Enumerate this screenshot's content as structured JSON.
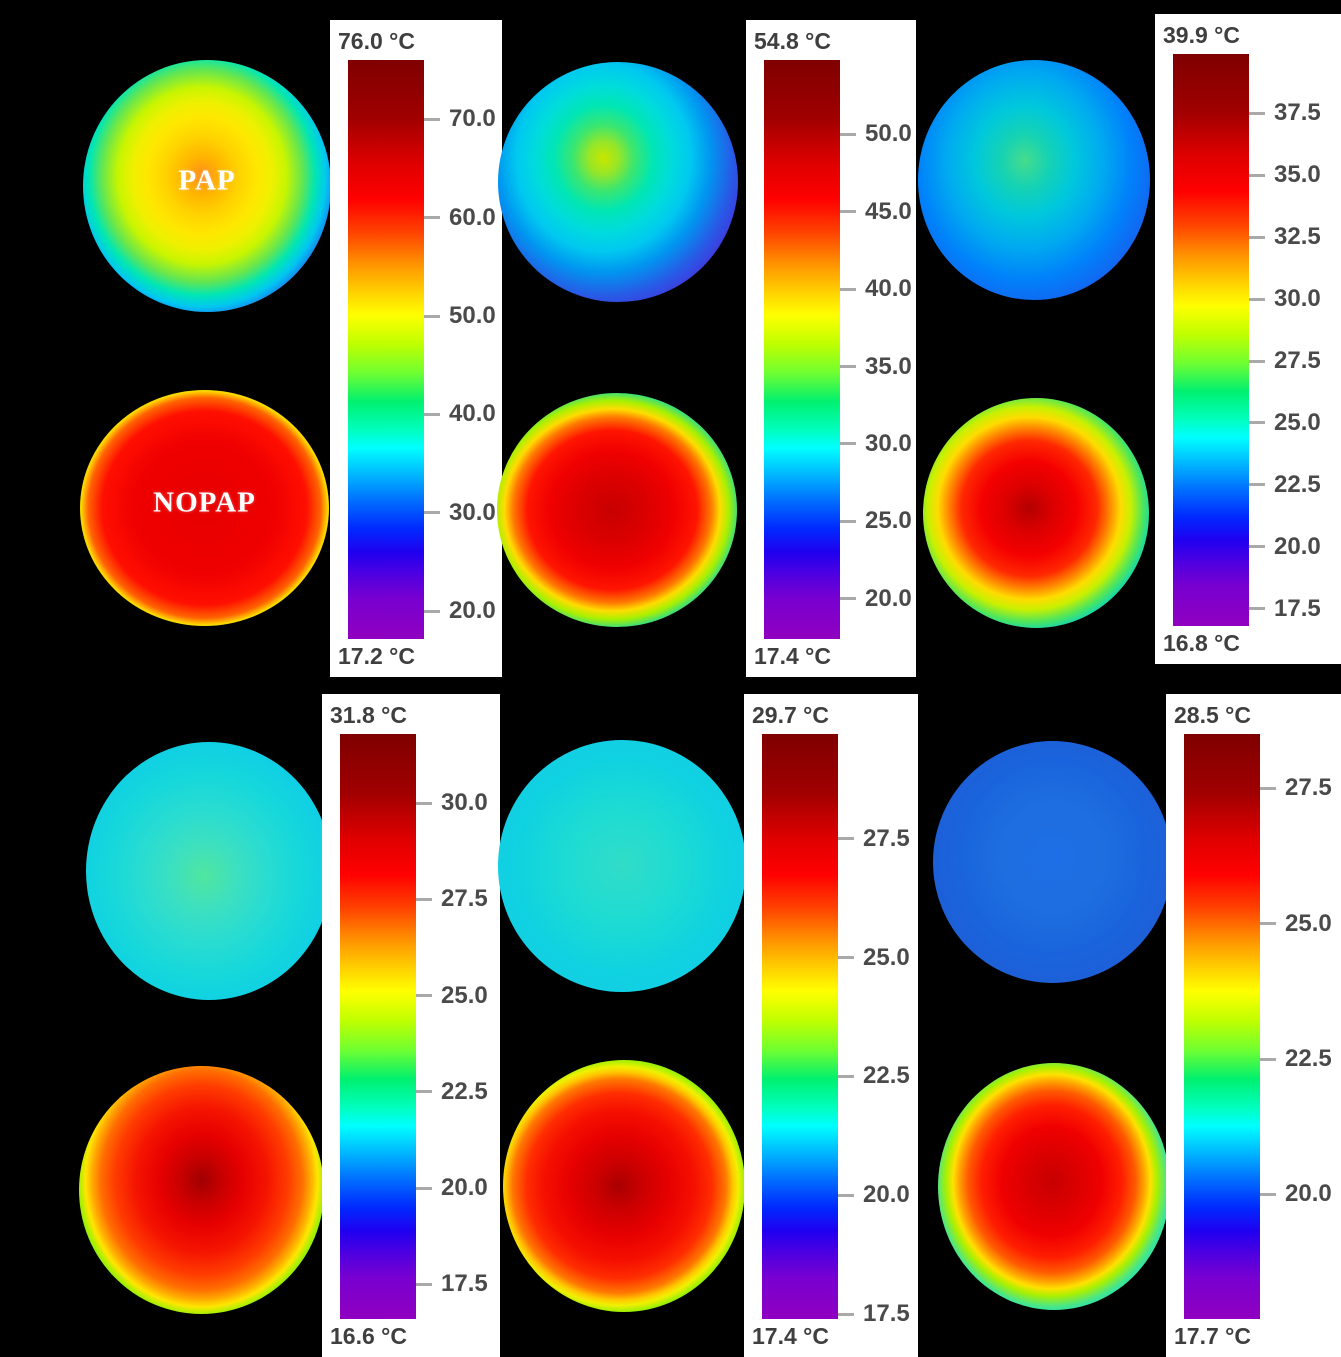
{
  "figure": {
    "background_color": "#000000",
    "pap_label": "PAP",
    "nopap_label": "NOPAP",
    "colorbar_gradient": [
      "#7f0000 0%",
      "#a00000 10%",
      "#e00000 18%",
      "#ff0000 24%",
      "#ff4500 30%",
      "#ff9000 35%",
      "#ffd000 40%",
      "#ffff00 44%",
      "#c0ff00 49%",
      "#70ff30 54%",
      "#00f070 59%",
      "#00ffc0 64%",
      "#00ffff 67%",
      "#00c0ff 71%",
      "#0070ff 76%",
      "#0028ff 81%",
      "#2000f0 85%",
      "#5000e0 89%",
      "#7800d0 93%",
      "#9000c0 100%"
    ]
  },
  "chart_data": [
    {
      "type": "heatmap",
      "position": "row 1, col 1",
      "colorbar": {
        "unit": "°C",
        "max": 76.0,
        "min": 17.2,
        "max_label": "76.0 °C",
        "min_label": "17.2 °C",
        "ticks": [
          {
            "label": "70.0",
            "value": 70.0
          },
          {
            "label": "60.0",
            "value": 60.0
          },
          {
            "label": "50.0",
            "value": 50.0
          },
          {
            "label": "40.0",
            "value": 40.0
          },
          {
            "label": "30.0",
            "value": 30.0
          },
          {
            "label": "20.0",
            "value": 20.0
          }
        ]
      },
      "images": [
        {
          "name": "PAP",
          "label": "PAP",
          "description": "warm disc: orange-yellow core, green-cyan ring, blue-violet rim",
          "gradient": {
            "at": "48% 46%",
            "stops": [
              "#ff8c1e 0%",
              "#ffb400 10%",
              "#ffd200 20%",
              "#ffe600 30%",
              "#f0f000 38%",
              "#c8f500 46%",
              "#64e650 55%",
              "#00e6b4 62%",
              "#00c8f0 68%",
              "#1e78f0 74%",
              "#3c3ce6 80%",
              "#5a14d2 87%",
              "#6414b4 94%",
              "#5a10a0 100%"
            ]
          }
        },
        {
          "name": "NOPAP",
          "label": "NOPAP",
          "description": "hot disc: large red core, thin yellow-green ring, blue-violet rim",
          "gradient": {
            "at": "50% 50%",
            "stops": [
              "#e60000 0%",
              "#f00000 40%",
              "#ff0f00 58%",
              "#ff6400 66%",
              "#ffd700 70%",
              "#a0f000 74%",
              "#00dc82 78%",
              "#00b4f0 82%",
              "#2850f0 87%",
              "#5a1ed2 93%",
              "#5a14aa 100%"
            ]
          }
        }
      ]
    },
    {
      "type": "heatmap",
      "position": "row 1, col 2",
      "colorbar": {
        "unit": "°C",
        "max": 54.8,
        "min": 17.4,
        "max_label": "54.8 °C",
        "min_label": "17.4 °C",
        "ticks": [
          {
            "label": "50.0",
            "value": 50.0
          },
          {
            "label": "45.0",
            "value": 45.0
          },
          {
            "label": "40.0",
            "value": 40.0
          },
          {
            "label": "35.0",
            "value": 35.0
          },
          {
            "label": "30.0",
            "value": 30.0
          },
          {
            "label": "25.0",
            "value": 25.0
          },
          {
            "label": "20.0",
            "value": 20.0
          }
        ]
      },
      "images": [
        {
          "name": "PAP",
          "description": "cool disc: yellow-green core offset upper-left, cyan mid, blue-violet rim",
          "gradient": {
            "at": "44% 40%",
            "stops": [
              "#c8e600 0%",
              "#96e628 8%",
              "#3ce66e 16%",
              "#00e6b4 26%",
              "#00dcdc 36%",
              "#00c8f0 46%",
              "#0096f0 56%",
              "#285ae6 68%",
              "#4632dc 78%",
              "#5a1ecd 88%",
              "#5a19b9 100%"
            ]
          }
        },
        {
          "name": "NOPAP",
          "description": "hot disc: red core with yellow patch, yellow-green ring, blue-violet rim",
          "gradient": {
            "at": "48% 50%",
            "stops": [
              "#c80000 0%",
              "#dc0000 20%",
              "#f00000 35%",
              "#ff1400 48%",
              "#ff7800 56%",
              "#ffdc00 61%",
              "#aaf000 66%",
              "#28dc8c 72%",
              "#00c0f0 78%",
              "#2864e6 85%",
              "#5022d2 92%",
              "#5a17b4 100%"
            ]
          }
        }
      ]
    },
    {
      "type": "heatmap",
      "position": "row 1, col 3",
      "colorbar": {
        "unit": "°C",
        "max": 39.9,
        "min": 16.8,
        "max_label": "39.9 °C",
        "min_label": "16.8 °C",
        "ticks": [
          {
            "label": "37.5",
            "value": 37.5
          },
          {
            "label": "35.0",
            "value": 35.0
          },
          {
            "label": "32.5",
            "value": 32.5
          },
          {
            "label": "30.0",
            "value": 30.0
          },
          {
            "label": "27.5",
            "value": 27.5
          },
          {
            "label": "25.0",
            "value": 25.0
          },
          {
            "label": "22.5",
            "value": 22.5
          },
          {
            "label": "20.0",
            "value": 20.0
          },
          {
            "label": "17.5",
            "value": 17.5
          }
        ]
      },
      "images": [
        {
          "name": "PAP",
          "description": "cool blue disc with green-cyan core",
          "gradient": {
            "at": "46% 42%",
            "stops": [
              "#46dc8c 0%",
              "#14d2b4 14%",
              "#00c8dc 28%",
              "#00aaf0 44%",
              "#0082fa 60%",
              "#1464f0 75%",
              "#1e50e6 88%",
              "#2846dc 100%"
            ]
          }
        },
        {
          "name": "NOPAP",
          "description": "hot disc: dark-red core, yellow ring, green-cyan band, blue rim",
          "gradient": {
            "at": "47% 48%",
            "stops": [
              "#b40000 0%",
              "#dc0000 14%",
              "#f50000 28%",
              "#ff2800 40%",
              "#ff8c00 48%",
              "#ffdc00 54%",
              "#c8f000 60%",
              "#50e65a 67%",
              "#00d2c8 74%",
              "#00aaf0 80%",
              "#1e78f5 87%",
              "#2858e6 100%"
            ]
          }
        }
      ]
    },
    {
      "type": "heatmap",
      "position": "row 2, col 1",
      "colorbar": {
        "unit": "°C",
        "max": 31.8,
        "min": 16.6,
        "max_label": "31.8 °C",
        "min_label": "16.6 °C",
        "ticks": [
          {
            "label": "30.0",
            "value": 30.0
          },
          {
            "label": "27.5",
            "value": 27.5
          },
          {
            "label": "25.0",
            "value": 25.0
          },
          {
            "label": "22.5",
            "value": 22.5
          },
          {
            "label": "20.0",
            "value": 20.0
          },
          {
            "label": "17.5",
            "value": 17.5
          }
        ]
      },
      "images": [
        {
          "name": "PAP",
          "description": "uniform cyan disc with faint green core",
          "gradient": {
            "at": "48% 52%",
            "stops": [
              "#50e6a0 0%",
              "#3ce0c0 18%",
              "#28dcd2 36%",
              "#14d7dc 55%",
              "#0fcde6 75%",
              "#23c3e6 90%",
              "#37b9e6 100%"
            ]
          }
        },
        {
          "name": "NOPAP",
          "description": "hot disc: red core with dark spot, orange-yellow ring, cyan rim",
          "gradient": {
            "at": "50% 46%",
            "stops": [
              "#a00000 0%",
              "#c80000 12%",
              "#e60000 24%",
              "#f51400 38%",
              "#ff3c00 50%",
              "#ff6e00 58%",
              "#ffaa00 63%",
              "#ffe600 67%",
              "#a0f000 71%",
              "#3ce68c 76%",
              "#14dcc8 81%",
              "#23d7d7 90%",
              "#2dd2d2 100%"
            ]
          }
        }
      ]
    },
    {
      "type": "heatmap",
      "position": "row 2, col 2",
      "colorbar": {
        "unit": "°C",
        "max": 29.7,
        "min": 17.4,
        "max_label": "29.7 °C",
        "min_label": "17.4 °C",
        "ticks": [
          {
            "label": "27.5",
            "value": 27.5
          },
          {
            "label": "25.0",
            "value": 25.0
          },
          {
            "label": "22.5",
            "value": 22.5
          },
          {
            "label": "20.0",
            "value": 20.0
          },
          {
            "label": "17.5",
            "value": 17.5
          }
        ]
      },
      "images": [
        {
          "name": "PAP",
          "description": "uniform cyan disc",
          "gradient": {
            "at": "50% 50%",
            "stops": [
              "#32dcc8 0%",
              "#1edcd2 30%",
              "#0fd2e0 60%",
              "#14cde6 80%",
              "#28c3e6 100%"
            ]
          }
        },
        {
          "name": "NOPAP",
          "description": "hot disc: red core, yellow-green ring, cyan rim",
          "gradient": {
            "at": "48% 50%",
            "stops": [
              "#aa0000 0%",
              "#cd0000 14%",
              "#e60000 28%",
              "#f50f00 42%",
              "#ff2d00 52%",
              "#ff7800 60%",
              "#ffc800 64%",
              "#f0f000 67%",
              "#96f000 71%",
              "#32e196 76%",
              "#0fdcd2 82%",
              "#23d7dc 100%"
            ]
          }
        }
      ]
    },
    {
      "type": "heatmap",
      "position": "row 2, col 3",
      "colorbar": {
        "unit": "°C",
        "max": 28.5,
        "min": 17.7,
        "max_label": "28.5 °C",
        "min_label": "17.7 °C",
        "ticks": [
          {
            "label": "27.5",
            "value": 27.5
          },
          {
            "label": "25.0",
            "value": 25.0
          },
          {
            "label": "22.5",
            "value": 22.5
          },
          {
            "label": "20.0",
            "value": 20.0
          }
        ]
      },
      "images": [
        {
          "name": "PAP",
          "description": "uniform mottled blue disc",
          "gradient": {
            "at": "50% 48%",
            "stops": [
              "#1e6ee6 0%",
              "#1e6ee0 30%",
              "#1964dc 55%",
              "#1e5fd7 75%",
              "#2355d2 100%"
            ]
          }
        },
        {
          "name": "NOPAP",
          "description": "hot disc: red core, thin yellow-green ring, wide cyan rim",
          "gradient": {
            "at": "49% 48%",
            "stops": [
              "#c80000 0%",
              "#dc0000 16%",
              "#f00000 30%",
              "#ff1e00 42%",
              "#ff5a00 50%",
              "#ffa000 55%",
              "#ffe100 59%",
              "#aaf000 63%",
              "#46e68c 69%",
              "#0fdcc8 76%",
              "#1edcd7 88%",
              "#28d7dc 100%"
            ]
          }
        }
      ]
    }
  ]
}
